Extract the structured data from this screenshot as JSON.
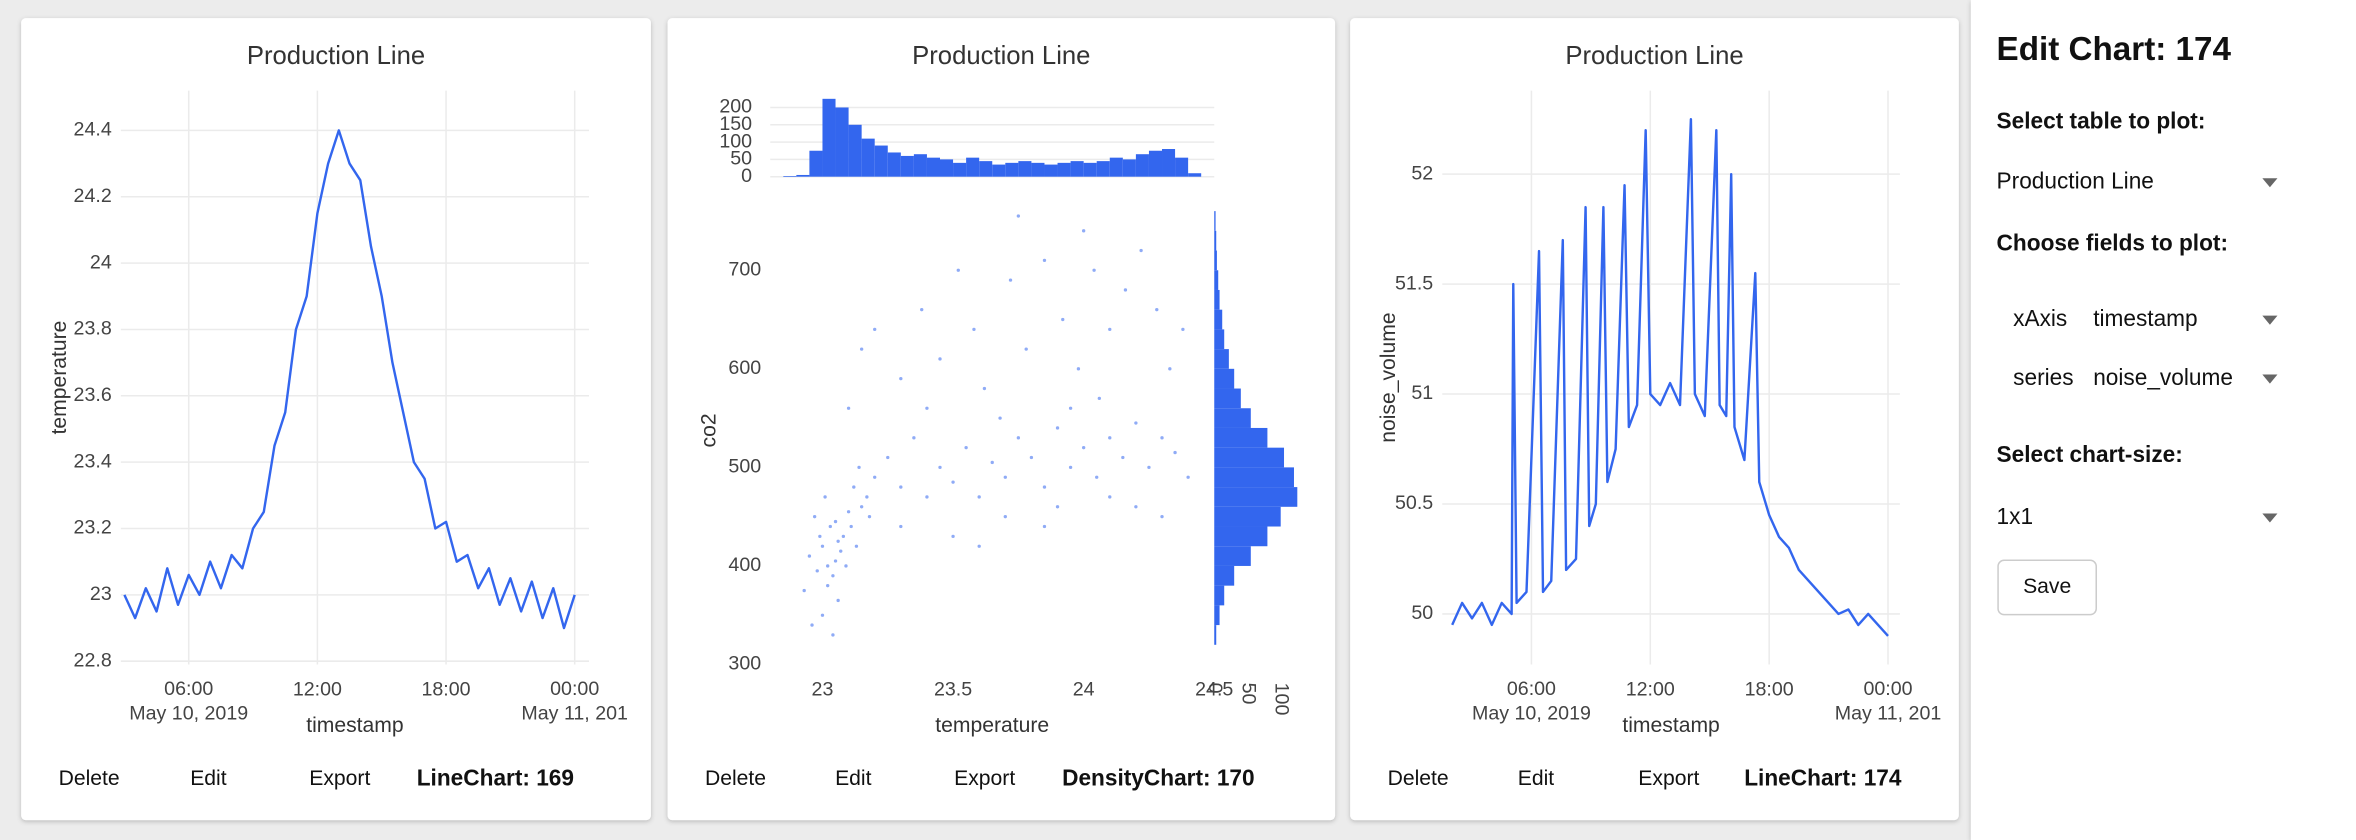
{
  "chart_data": [
    {
      "type": "line",
      "title": "Production Line",
      "xlabel": "timestamp",
      "ylabel": "temperature",
      "color": "#3366ee",
      "grid": true,
      "x": [
        "2019-05-10T03:00",
        "2019-05-10T03:30",
        "2019-05-10T04:00",
        "2019-05-10T04:30",
        "2019-05-10T05:00",
        "2019-05-10T05:30",
        "2019-05-10T06:00",
        "2019-05-10T06:30",
        "2019-05-10T07:00",
        "2019-05-10T07:30",
        "2019-05-10T08:00",
        "2019-05-10T08:30",
        "2019-05-10T09:00",
        "2019-05-10T09:30",
        "2019-05-10T10:00",
        "2019-05-10T10:30",
        "2019-05-10T11:00",
        "2019-05-10T11:30",
        "2019-05-10T12:00",
        "2019-05-10T12:30",
        "2019-05-10T13:00",
        "2019-05-10T13:30",
        "2019-05-10T14:00",
        "2019-05-10T14:30",
        "2019-05-10T15:00",
        "2019-05-10T15:30",
        "2019-05-10T16:00",
        "2019-05-10T16:30",
        "2019-05-10T17:00",
        "2019-05-10T17:30",
        "2019-05-10T18:00",
        "2019-05-10T18:30",
        "2019-05-10T19:00",
        "2019-05-10T19:30",
        "2019-05-10T20:00",
        "2019-05-10T20:30",
        "2019-05-10T21:00",
        "2019-05-10T21:30",
        "2019-05-10T22:00",
        "2019-05-10T22:30",
        "2019-05-10T23:00",
        "2019-05-10T23:30",
        "2019-05-11T00:00"
      ],
      "values": [
        23.0,
        22.93,
        23.02,
        22.95,
        23.08,
        22.97,
        23.06,
        23.0,
        23.1,
        23.02,
        23.12,
        23.08,
        23.2,
        23.25,
        23.45,
        23.55,
        23.8,
        23.9,
        24.15,
        24.3,
        24.4,
        24.3,
        24.25,
        24.05,
        23.9,
        23.7,
        23.55,
        23.4,
        23.35,
        23.2,
        23.22,
        23.1,
        23.12,
        23.02,
        23.08,
        22.97,
        23.05,
        22.95,
        23.04,
        22.93,
        23.02,
        22.9,
        23.0
      ],
      "xlim": [
        "2019-05-10T02:50",
        "2019-05-11T00:40"
      ],
      "xticks": [
        {
          "value": "2019-05-10T06:00",
          "label": "06:00\nMay 10, 2019"
        },
        {
          "value": "2019-05-10T12:00",
          "label": "12:00"
        },
        {
          "value": "2019-05-10T18:00",
          "label": "18:00"
        },
        {
          "value": "2019-05-11T00:00",
          "label": "00:00\nMay 11, 201"
        }
      ],
      "ylim": [
        22.79,
        24.52
      ],
      "yticks": [
        22.8,
        23,
        23.2,
        23.4,
        23.6,
        23.8,
        24,
        24.2,
        24.4
      ]
    },
    {
      "type": "density",
      "title": "Production Line",
      "xlabel": "temperature",
      "ylabel": "co2",
      "color": "#3366ee",
      "grid": false,
      "x": [
        22.95,
        22.98,
        23.0,
        23.02,
        23.03,
        23.05,
        23.06,
        23.08,
        22.97,
        23.01,
        23.04,
        23.07,
        23.1,
        23.09,
        22.93,
        23.0,
        23.12,
        23.11,
        23.13,
        23.15,
        22.99,
        23.05,
        23.02,
        23.06,
        23.14,
        23.17,
        22.96,
        23.04,
        23.2,
        23.18,
        23.25,
        23.3,
        23.35,
        23.4,
        23.45,
        23.5,
        23.55,
        23.6,
        23.65,
        23.7,
        23.75,
        23.8,
        23.85,
        23.9,
        23.95,
        24.0,
        24.05,
        24.1,
        24.15,
        24.2,
        24.25,
        24.3,
        24.35,
        24.4,
        23.1,
        23.15,
        23.2,
        23.3,
        23.38,
        23.45,
        23.52,
        23.58,
        23.62,
        23.72,
        23.78,
        23.85,
        23.92,
        23.98,
        24.04,
        24.1,
        24.16,
        24.22,
        24.28,
        24.33,
        24.38,
        24.06,
        23.95,
        23.68,
        23.3,
        23.5,
        23.7,
        23.9,
        24.1,
        24.3,
        23.6,
        23.85,
        24.2,
        23.4,
        24.0,
        23.75
      ],
      "y": [
        410,
        395,
        420,
        380,
        440,
        405,
        365,
        430,
        450,
        470,
        390,
        415,
        455,
        400,
        375,
        350,
        480,
        440,
        420,
        460,
        430,
        445,
        400,
        425,
        500,
        470,
        340,
        330,
        490,
        450,
        510,
        480,
        530,
        470,
        500,
        485,
        520,
        470,
        505,
        490,
        530,
        510,
        480,
        540,
        500,
        520,
        490,
        530,
        510,
        545,
        500,
        530,
        515,
        490,
        560,
        620,
        640,
        590,
        660,
        610,
        700,
        640,
        580,
        690,
        620,
        710,
        650,
        600,
        700,
        640,
        680,
        720,
        660,
        600,
        640,
        570,
        560,
        550,
        440,
        430,
        450,
        460,
        470,
        450,
        420,
        440,
        460,
        560,
        740,
        755
      ],
      "xlim": [
        22.8,
        24.5
      ],
      "xticks": [
        23,
        23.5,
        24,
        24.5
      ],
      "ylim": [
        300,
        775
      ],
      "yticks": [
        300,
        400,
        500,
        600,
        700
      ],
      "top_hist": {
        "bins": [
          22.85,
          22.9,
          22.95,
          23.0,
          23.05,
          23.1,
          23.15,
          23.2,
          23.25,
          23.3,
          23.35,
          23.4,
          23.45,
          23.5,
          23.55,
          23.6,
          23.65,
          23.7,
          23.75,
          23.8,
          23.85,
          23.9,
          23.95,
          24.0,
          24.05,
          24.1,
          24.15,
          24.2,
          24.25,
          24.3,
          24.35,
          24.4,
          24.45
        ],
        "counts": [
          2,
          5,
          75,
          225,
          200,
          150,
          110,
          90,
          70,
          60,
          65,
          55,
          50,
          40,
          55,
          45,
          35,
          40,
          45,
          40,
          35,
          40,
          45,
          40,
          45,
          55,
          50,
          65,
          75,
          80,
          55,
          10
        ],
        "ylim": [
          0,
          240
        ],
        "yticks": [
          0,
          50,
          100,
          150,
          200
        ]
      },
      "right_hist": {
        "bins": [
          320,
          340,
          360,
          380,
          400,
          420,
          440,
          460,
          480,
          500,
          520,
          540,
          560,
          580,
          600,
          620,
          640,
          660,
          680,
          700,
          720,
          740,
          760
        ],
        "counts": [
          3,
          8,
          15,
          30,
          55,
          80,
          100,
          125,
          120,
          105,
          80,
          55,
          40,
          30,
          22,
          15,
          12,
          8,
          6,
          4,
          3,
          2
        ],
        "xlim": [
          0,
          135
        ],
        "xticks": [
          0,
          50,
          100
        ]
      }
    },
    {
      "type": "line",
      "title": "Production Line",
      "xlabel": "timestamp",
      "ylabel": "noise_volume",
      "color": "#3366ee",
      "grid": true,
      "x": [
        "2019-05-10T02:00",
        "2019-05-10T02:30",
        "2019-05-10T03:00",
        "2019-05-10T03:30",
        "2019-05-10T04:00",
        "2019-05-10T04:30",
        "2019-05-10T05:00",
        "2019-05-10T05:05",
        "2019-05-10T05:15",
        "2019-05-10T05:45",
        "2019-05-10T06:23",
        "2019-05-10T06:35",
        "2019-05-10T07:00",
        "2019-05-10T07:35",
        "2019-05-10T07:45",
        "2019-05-10T08:15",
        "2019-05-10T08:44",
        "2019-05-10T08:55",
        "2019-05-10T09:15",
        "2019-05-10T09:38",
        "2019-05-10T09:50",
        "2019-05-10T10:15",
        "2019-05-10T10:42",
        "2019-05-10T10:55",
        "2019-05-10T11:20",
        "2019-05-10T11:46",
        "2019-05-10T12:00",
        "2019-05-10T12:30",
        "2019-05-10T13:00",
        "2019-05-10T13:30",
        "2019-05-10T14:03",
        "2019-05-10T14:15",
        "2019-05-10T14:45",
        "2019-05-10T15:20",
        "2019-05-10T15:30",
        "2019-05-10T15:50",
        "2019-05-10T16:05",
        "2019-05-10T16:15",
        "2019-05-10T16:45",
        "2019-05-10T17:18",
        "2019-05-10T17:30",
        "2019-05-10T18:00",
        "2019-05-10T18:30",
        "2019-05-10T19:00",
        "2019-05-10T19:30",
        "2019-05-10T20:00",
        "2019-05-10T20:30",
        "2019-05-10T21:00",
        "2019-05-10T21:30",
        "2019-05-10T22:00",
        "2019-05-10T22:30",
        "2019-05-10T23:00",
        "2019-05-10T23:30",
        "2019-05-11T00:00"
      ],
      "values": [
        49.95,
        50.05,
        49.98,
        50.05,
        49.95,
        50.05,
        50.0,
        51.5,
        50.05,
        50.1,
        51.65,
        50.1,
        50.15,
        51.7,
        50.2,
        50.25,
        51.85,
        50.4,
        50.5,
        51.85,
        50.6,
        50.75,
        51.95,
        50.85,
        50.95,
        52.2,
        51.0,
        50.95,
        51.05,
        50.95,
        52.25,
        51.0,
        50.9,
        52.2,
        50.95,
        50.9,
        52.0,
        50.85,
        50.7,
        51.55,
        50.6,
        50.45,
        50.35,
        50.3,
        50.2,
        50.15,
        50.1,
        50.05,
        50.0,
        50.02,
        49.95,
        50.0,
        49.95,
        49.9
      ],
      "xlim": [
        "2019-05-10T01:30",
        "2019-05-11T00:36"
      ],
      "xticks": [
        {
          "value": "2019-05-10T06:00",
          "label": "06:00\nMay 10, 2019"
        },
        {
          "value": "2019-05-10T12:00",
          "label": "12:00"
        },
        {
          "value": "2019-05-10T18:00",
          "label": "18:00"
        },
        {
          "value": "2019-05-11T00:00",
          "label": "00:00\nMay 11, 201"
        }
      ],
      "ylim": [
        49.77,
        52.38
      ],
      "yticks": [
        50,
        50.5,
        51,
        51.5,
        52
      ]
    }
  ],
  "cards": [
    {
      "actions": [
        "Delete",
        "Edit",
        "Export"
      ],
      "label": "LineChart: 169"
    },
    {
      "actions": [
        "Delete",
        "Edit",
        "Export"
      ],
      "label": "DensityChart: 170"
    },
    {
      "actions": [
        "Delete",
        "Edit",
        "Export"
      ],
      "label": "LineChart: 174"
    }
  ],
  "panel": {
    "title": "Edit Chart: 174",
    "table_label": "Select table to plot:",
    "table": "Production Line",
    "fields_label": "Choose fields to plot:",
    "fields": [
      {
        "name": "xAxis",
        "value": "timestamp"
      },
      {
        "name": "series",
        "value": "noise_volume"
      }
    ],
    "size_label": "Select chart-size:",
    "size": "1x1",
    "save": "Save"
  }
}
